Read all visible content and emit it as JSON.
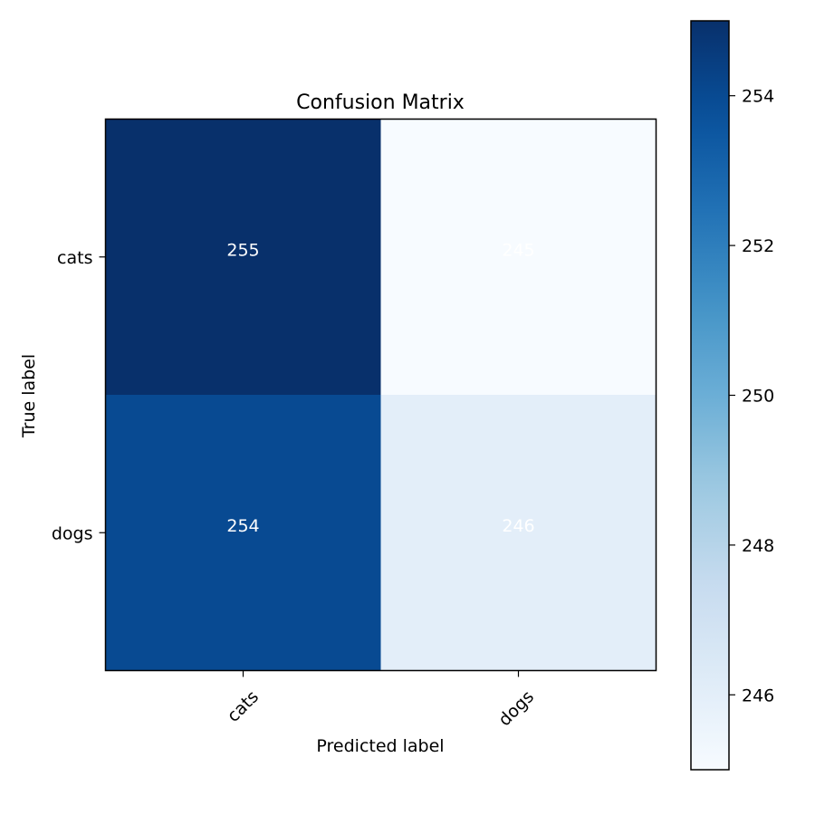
{
  "chart_data": {
    "type": "heatmap",
    "title": "Confusion Matrix",
    "xlabel": "Predicted label",
    "ylabel": "True label",
    "x_categories": [
      "cats",
      "dogs"
    ],
    "y_categories": [
      "cats",
      "dogs"
    ],
    "values": [
      [
        255,
        245
      ],
      [
        254,
        246
      ]
    ],
    "colormap": "Blues",
    "colorbar": {
      "min": 245,
      "max": 255,
      "ticks": [
        246,
        248,
        250,
        252,
        254
      ],
      "placement": "right"
    },
    "grid": false,
    "cell_text_color": "#ffffff",
    "colors": {
      "low": "#f7fbff",
      "high": "#08306b",
      "axes": "#000000"
    }
  }
}
